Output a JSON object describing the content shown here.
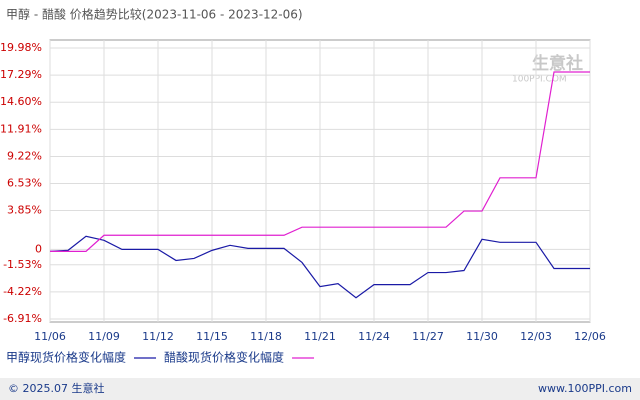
{
  "chart_data": {
    "type": "line",
    "title": "甲醇 - 醋酸 价格趋势比较(2023-11-06 - 2023-12-06)",
    "categories": [
      "11/06",
      null,
      null,
      "11/09",
      null,
      null,
      "11/12",
      null,
      null,
      "11/15",
      null,
      null,
      "11/18",
      null,
      null,
      "11/21",
      null,
      null,
      "11/24",
      null,
      null,
      "11/27",
      null,
      null,
      "11/30",
      null,
      null,
      "12/03",
      null,
      null,
      "12/06"
    ],
    "series": [
      {
        "name": "甲醇现货价格变化幅度",
        "color": "#1a1aa6",
        "values": [
          -0.2,
          -0.1,
          1.3,
          0.9,
          0,
          0,
          0,
          -1.1,
          -0.9,
          -0.1,
          0.4,
          0.1,
          0.1,
          0.1,
          -1.3,
          -3.7,
          -3.4,
          -4.8,
          -3.5,
          -3.5,
          -3.5,
          -2.3,
          -2.3,
          -2.1,
          1.0,
          0.7,
          0.7,
          0.7,
          -1.9,
          -1.9,
          -1.9
        ]
      },
      {
        "name": "醋酸现货价格变化幅度",
        "color": "#e020d0",
        "values": [
          -0.2,
          -0.2,
          -0.2,
          1.4,
          1.4,
          1.4,
          1.4,
          1.4,
          1.4,
          1.4,
          1.4,
          1.4,
          1.4,
          1.4,
          2.2,
          2.2,
          2.2,
          2.2,
          2.2,
          2.2,
          2.2,
          2.2,
          2.2,
          3.8,
          3.8,
          7.1,
          7.1,
          7.1,
          17.6,
          17.6,
          17.6
        ]
      }
    ],
    "ylim": [
      -6.91,
      19.98
    ],
    "yticks": [
      {
        "value": 19.98,
        "label": "19.98%"
      },
      {
        "value": 17.29,
        "label": "17.29%"
      },
      {
        "value": 14.6,
        "label": "14.60%"
      },
      {
        "value": 11.91,
        "label": "11.91%"
      },
      {
        "value": 9.22,
        "label": "9.22%"
      },
      {
        "value": 6.53,
        "label": "6.53%"
      },
      {
        "value": 3.85,
        "label": "3.85%"
      },
      0,
      {
        "value": -1.53,
        "label": "-1.53%"
      },
      {
        "value": -4.22,
        "label": "-4.22%"
      },
      {
        "value": -6.91,
        "label": "-6.91%"
      }
    ],
    "grid": true,
    "watermark": {
      "name": "生意社",
      "url": "100PPI.COM"
    },
    "footer": {
      "copyright": "© 2025.07 生意社",
      "site": "www.100PPI.com"
    }
  }
}
